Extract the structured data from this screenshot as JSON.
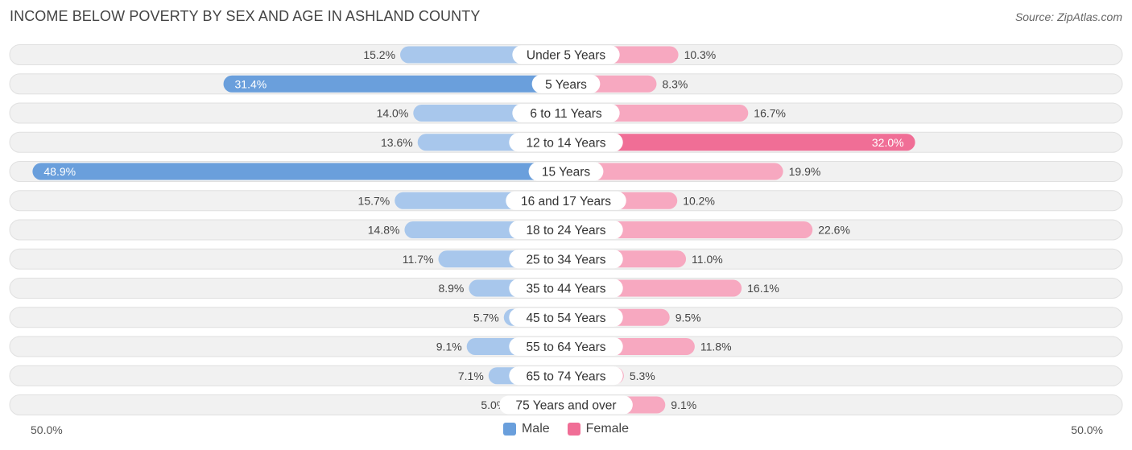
{
  "header": {
    "title": "INCOME BELOW POVERTY BY SEX AND AGE IN ASHLAND COUNTY",
    "source": "Source: ZipAtlas.com"
  },
  "axis": {
    "left_label": "50.0%",
    "right_label": "50.0%"
  },
  "legend": {
    "male_label": "Male",
    "female_label": "Female"
  },
  "colors": {
    "male_strong": "#6a9fdc",
    "male_light": "#a8c7ec",
    "female_strong": "#f06e96",
    "female_light": "#f7a8c0",
    "track": "#f1f1f1",
    "track_border": "#e0e0e0"
  },
  "chart_data": {
    "type": "bar",
    "orientation": "horizontal-diverging",
    "title": "INCOME BELOW POVERTY BY SEX AND AGE IN ASHLAND COUNTY",
    "xlim": [
      -50,
      50
    ],
    "categories": [
      "Under 5 Years",
      "5 Years",
      "6 to 11 Years",
      "12 to 14 Years",
      "15 Years",
      "16 and 17 Years",
      "18 to 24 Years",
      "25 to 34 Years",
      "35 to 44 Years",
      "45 to 54 Years",
      "55 to 64 Years",
      "65 to 74 Years",
      "75 Years and over"
    ],
    "series": [
      {
        "name": "Male",
        "values": [
          15.2,
          31.4,
          14.0,
          13.6,
          48.9,
          15.7,
          14.8,
          11.7,
          8.9,
          5.7,
          9.1,
          7.1,
          5.0
        ],
        "labels": [
          "15.2%",
          "31.4%",
          "14.0%",
          "13.6%",
          "48.9%",
          "15.7%",
          "14.8%",
          "11.7%",
          "8.9%",
          "5.7%",
          "9.1%",
          "7.1%",
          "5.0%"
        ]
      },
      {
        "name": "Female",
        "values": [
          10.3,
          8.3,
          16.7,
          32.0,
          19.9,
          10.2,
          22.6,
          11.0,
          16.1,
          9.5,
          11.8,
          5.3,
          9.1
        ],
        "labels": [
          "10.3%",
          "8.3%",
          "16.7%",
          "32.0%",
          "19.9%",
          "10.2%",
          "22.6%",
          "11.0%",
          "16.1%",
          "9.5%",
          "11.8%",
          "5.3%",
          "9.1%"
        ]
      }
    ],
    "legend_position": "bottom-center"
  }
}
